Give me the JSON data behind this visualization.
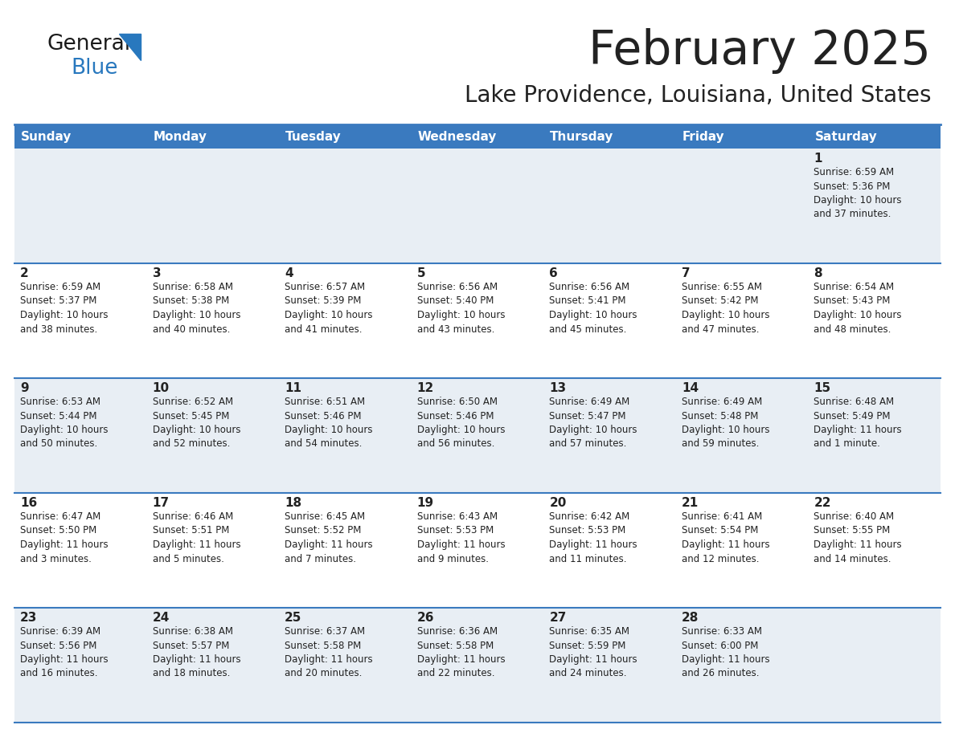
{
  "title": "February 2025",
  "subtitle": "Lake Providence, Louisiana, United States",
  "header_bg": "#3a7abf",
  "header_text_color": "#ffffff",
  "row0_bg": "#e8eef4",
  "row1_bg": "#ffffff",
  "row2_bg": "#e8eef4",
  "row3_bg": "#ffffff",
  "row4_bg": "#e8eef4",
  "border_color": "#3a7abf",
  "text_color": "#222222",
  "days_of_week": [
    "Sunday",
    "Monday",
    "Tuesday",
    "Wednesday",
    "Thursday",
    "Friday",
    "Saturday"
  ],
  "logo_general_color": "#1a1a1a",
  "logo_blue_color": "#2878be",
  "calendar_data": [
    [
      {
        "day": "",
        "sunrise": "",
        "sunset": "",
        "daylight": ""
      },
      {
        "day": "",
        "sunrise": "",
        "sunset": "",
        "daylight": ""
      },
      {
        "day": "",
        "sunrise": "",
        "sunset": "",
        "daylight": ""
      },
      {
        "day": "",
        "sunrise": "",
        "sunset": "",
        "daylight": ""
      },
      {
        "day": "",
        "sunrise": "",
        "sunset": "",
        "daylight": ""
      },
      {
        "day": "",
        "sunrise": "",
        "sunset": "",
        "daylight": ""
      },
      {
        "day": "1",
        "sunrise": "6:59 AM",
        "sunset": "5:36 PM",
        "daylight": "10 hours\nand 37 minutes."
      }
    ],
    [
      {
        "day": "2",
        "sunrise": "6:59 AM",
        "sunset": "5:37 PM",
        "daylight": "10 hours\nand 38 minutes."
      },
      {
        "day": "3",
        "sunrise": "6:58 AM",
        "sunset": "5:38 PM",
        "daylight": "10 hours\nand 40 minutes."
      },
      {
        "day": "4",
        "sunrise": "6:57 AM",
        "sunset": "5:39 PM",
        "daylight": "10 hours\nand 41 minutes."
      },
      {
        "day": "5",
        "sunrise": "6:56 AM",
        "sunset": "5:40 PM",
        "daylight": "10 hours\nand 43 minutes."
      },
      {
        "day": "6",
        "sunrise": "6:56 AM",
        "sunset": "5:41 PM",
        "daylight": "10 hours\nand 45 minutes."
      },
      {
        "day": "7",
        "sunrise": "6:55 AM",
        "sunset": "5:42 PM",
        "daylight": "10 hours\nand 47 minutes."
      },
      {
        "day": "8",
        "sunrise": "6:54 AM",
        "sunset": "5:43 PM",
        "daylight": "10 hours\nand 48 minutes."
      }
    ],
    [
      {
        "day": "9",
        "sunrise": "6:53 AM",
        "sunset": "5:44 PM",
        "daylight": "10 hours\nand 50 minutes."
      },
      {
        "day": "10",
        "sunrise": "6:52 AM",
        "sunset": "5:45 PM",
        "daylight": "10 hours\nand 52 minutes."
      },
      {
        "day": "11",
        "sunrise": "6:51 AM",
        "sunset": "5:46 PM",
        "daylight": "10 hours\nand 54 minutes."
      },
      {
        "day": "12",
        "sunrise": "6:50 AM",
        "sunset": "5:46 PM",
        "daylight": "10 hours\nand 56 minutes."
      },
      {
        "day": "13",
        "sunrise": "6:49 AM",
        "sunset": "5:47 PM",
        "daylight": "10 hours\nand 57 minutes."
      },
      {
        "day": "14",
        "sunrise": "6:49 AM",
        "sunset": "5:48 PM",
        "daylight": "10 hours\nand 59 minutes."
      },
      {
        "day": "15",
        "sunrise": "6:48 AM",
        "sunset": "5:49 PM",
        "daylight": "11 hours\nand 1 minute."
      }
    ],
    [
      {
        "day": "16",
        "sunrise": "6:47 AM",
        "sunset": "5:50 PM",
        "daylight": "11 hours\nand 3 minutes."
      },
      {
        "day": "17",
        "sunrise": "6:46 AM",
        "sunset": "5:51 PM",
        "daylight": "11 hours\nand 5 minutes."
      },
      {
        "day": "18",
        "sunrise": "6:45 AM",
        "sunset": "5:52 PM",
        "daylight": "11 hours\nand 7 minutes."
      },
      {
        "day": "19",
        "sunrise": "6:43 AM",
        "sunset": "5:53 PM",
        "daylight": "11 hours\nand 9 minutes."
      },
      {
        "day": "20",
        "sunrise": "6:42 AM",
        "sunset": "5:53 PM",
        "daylight": "11 hours\nand 11 minutes."
      },
      {
        "day": "21",
        "sunrise": "6:41 AM",
        "sunset": "5:54 PM",
        "daylight": "11 hours\nand 12 minutes."
      },
      {
        "day": "22",
        "sunrise": "6:40 AM",
        "sunset": "5:55 PM",
        "daylight": "11 hours\nand 14 minutes."
      }
    ],
    [
      {
        "day": "23",
        "sunrise": "6:39 AM",
        "sunset": "5:56 PM",
        "daylight": "11 hours\nand 16 minutes."
      },
      {
        "day": "24",
        "sunrise": "6:38 AM",
        "sunset": "5:57 PM",
        "daylight": "11 hours\nand 18 minutes."
      },
      {
        "day": "25",
        "sunrise": "6:37 AM",
        "sunset": "5:58 PM",
        "daylight": "11 hours\nand 20 minutes."
      },
      {
        "day": "26",
        "sunrise": "6:36 AM",
        "sunset": "5:58 PM",
        "daylight": "11 hours\nand 22 minutes."
      },
      {
        "day": "27",
        "sunrise": "6:35 AM",
        "sunset": "5:59 PM",
        "daylight": "11 hours\nand 24 minutes."
      },
      {
        "day": "28",
        "sunrise": "6:33 AM",
        "sunset": "6:00 PM",
        "daylight": "11 hours\nand 26 minutes."
      },
      {
        "day": "",
        "sunrise": "",
        "sunset": "",
        "daylight": ""
      }
    ]
  ]
}
